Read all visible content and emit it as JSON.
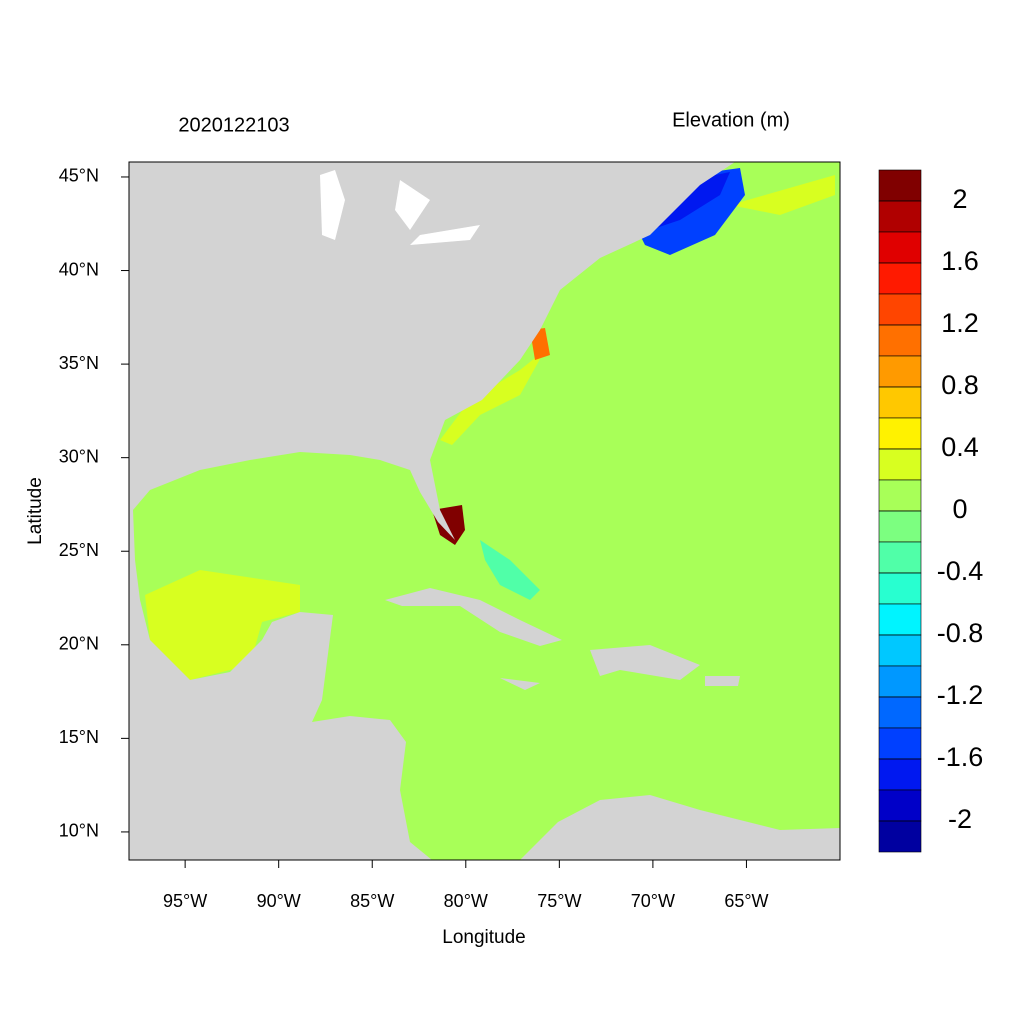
{
  "map": {
    "title_left": "2020122103",
    "title_right": "Elevation (m)",
    "x_label": "Longitude",
    "y_label": "Latitude",
    "xlim": [
      -98,
      -60
    ],
    "ylim": [
      8.5,
      45.8
    ],
    "xticks": [
      {
        "value": -95,
        "label": "95°W"
      },
      {
        "value": -90,
        "label": "90°W"
      },
      {
        "value": -85,
        "label": "85°W"
      },
      {
        "value": -80,
        "label": "80°W"
      },
      {
        "value": -75,
        "label": "75°W"
      },
      {
        "value": -70,
        "label": "70°W"
      },
      {
        "value": -65,
        "label": "65°W"
      }
    ],
    "yticks": [
      {
        "value": 10,
        "label": "10°N"
      },
      {
        "value": 15,
        "label": "15°N"
      },
      {
        "value": 20,
        "label": "20°N"
      },
      {
        "value": 25,
        "label": "25°N"
      },
      {
        "value": 30,
        "label": "30°N"
      },
      {
        "value": 35,
        "label": "35°N"
      },
      {
        "value": 40,
        "label": "40°N"
      },
      {
        "value": 45,
        "label": "45°N"
      }
    ],
    "colorbar": {
      "clim": [
        -2.2,
        2.2
      ],
      "ticks": [
        2,
        1.6,
        1.2,
        0.8,
        0.4,
        0,
        -0.4,
        -0.8,
        -1.2,
        -1.6,
        -2
      ],
      "colors": [
        "#800000",
        "#b00000",
        "#e00000",
        "#ff1a00",
        "#ff4500",
        "#ff7000",
        "#ff9a00",
        "#ffc800",
        "#fff200",
        "#d8ff20",
        "#a8ff58",
        "#7cff80",
        "#50ffa8",
        "#28ffd0",
        "#00f4ff",
        "#00c8ff",
        "#0098ff",
        "#0068ff",
        "#0040ff",
        "#0018f0",
        "#0000c8",
        "#0000a0"
      ]
    }
  }
}
